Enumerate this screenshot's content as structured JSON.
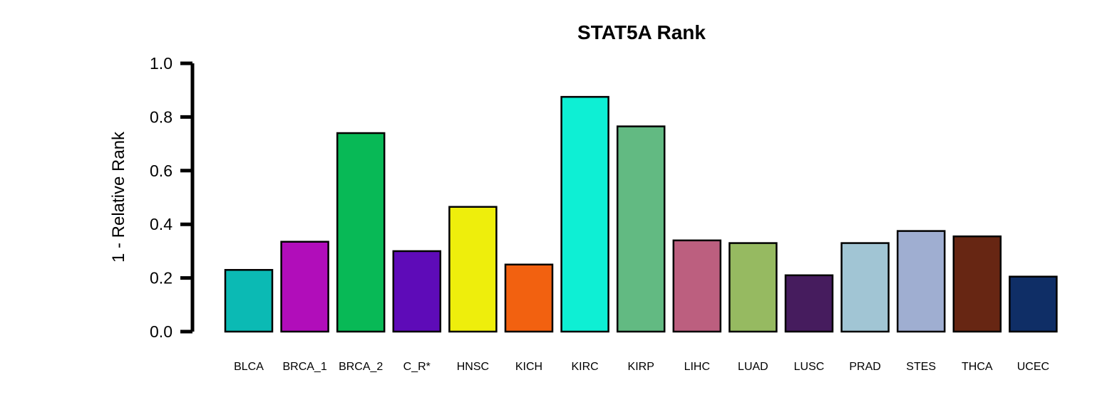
{
  "chart_data": {
    "type": "bar",
    "title": "STAT5A Rank",
    "xlabel": "",
    "ylabel": "1 - Relative Rank",
    "ylim": [
      0,
      1
    ],
    "yticks": [
      "0.0",
      "0.2",
      "0.4",
      "0.6",
      "0.8",
      "1.0"
    ],
    "categories": [
      "BLCA",
      "BRCA_1",
      "BRCA_2",
      "C_R*",
      "HNSC",
      "KICH",
      "KIRC",
      "KIRP",
      "LIHC",
      "LUAD",
      "LUSC",
      "PRAD",
      "STES",
      "THCA",
      "UCEC"
    ],
    "values": [
      0.23,
      0.335,
      0.74,
      0.3,
      0.465,
      0.25,
      0.875,
      0.765,
      0.34,
      0.33,
      0.21,
      0.33,
      0.375,
      0.355,
      0.205
    ],
    "colors": [
      "#0BBAB4",
      "#B10DBA",
      "#08B956",
      "#5E0BB8",
      "#EEEE0C",
      "#F26110",
      "#0EEFD4",
      "#62BA82",
      "#BC5F7F",
      "#96BA61",
      "#461C5E",
      "#A1C5D4",
      "#9FAED1",
      "#672613",
      "#0F2E66"
    ],
    "grid": false,
    "legend": "none"
  }
}
